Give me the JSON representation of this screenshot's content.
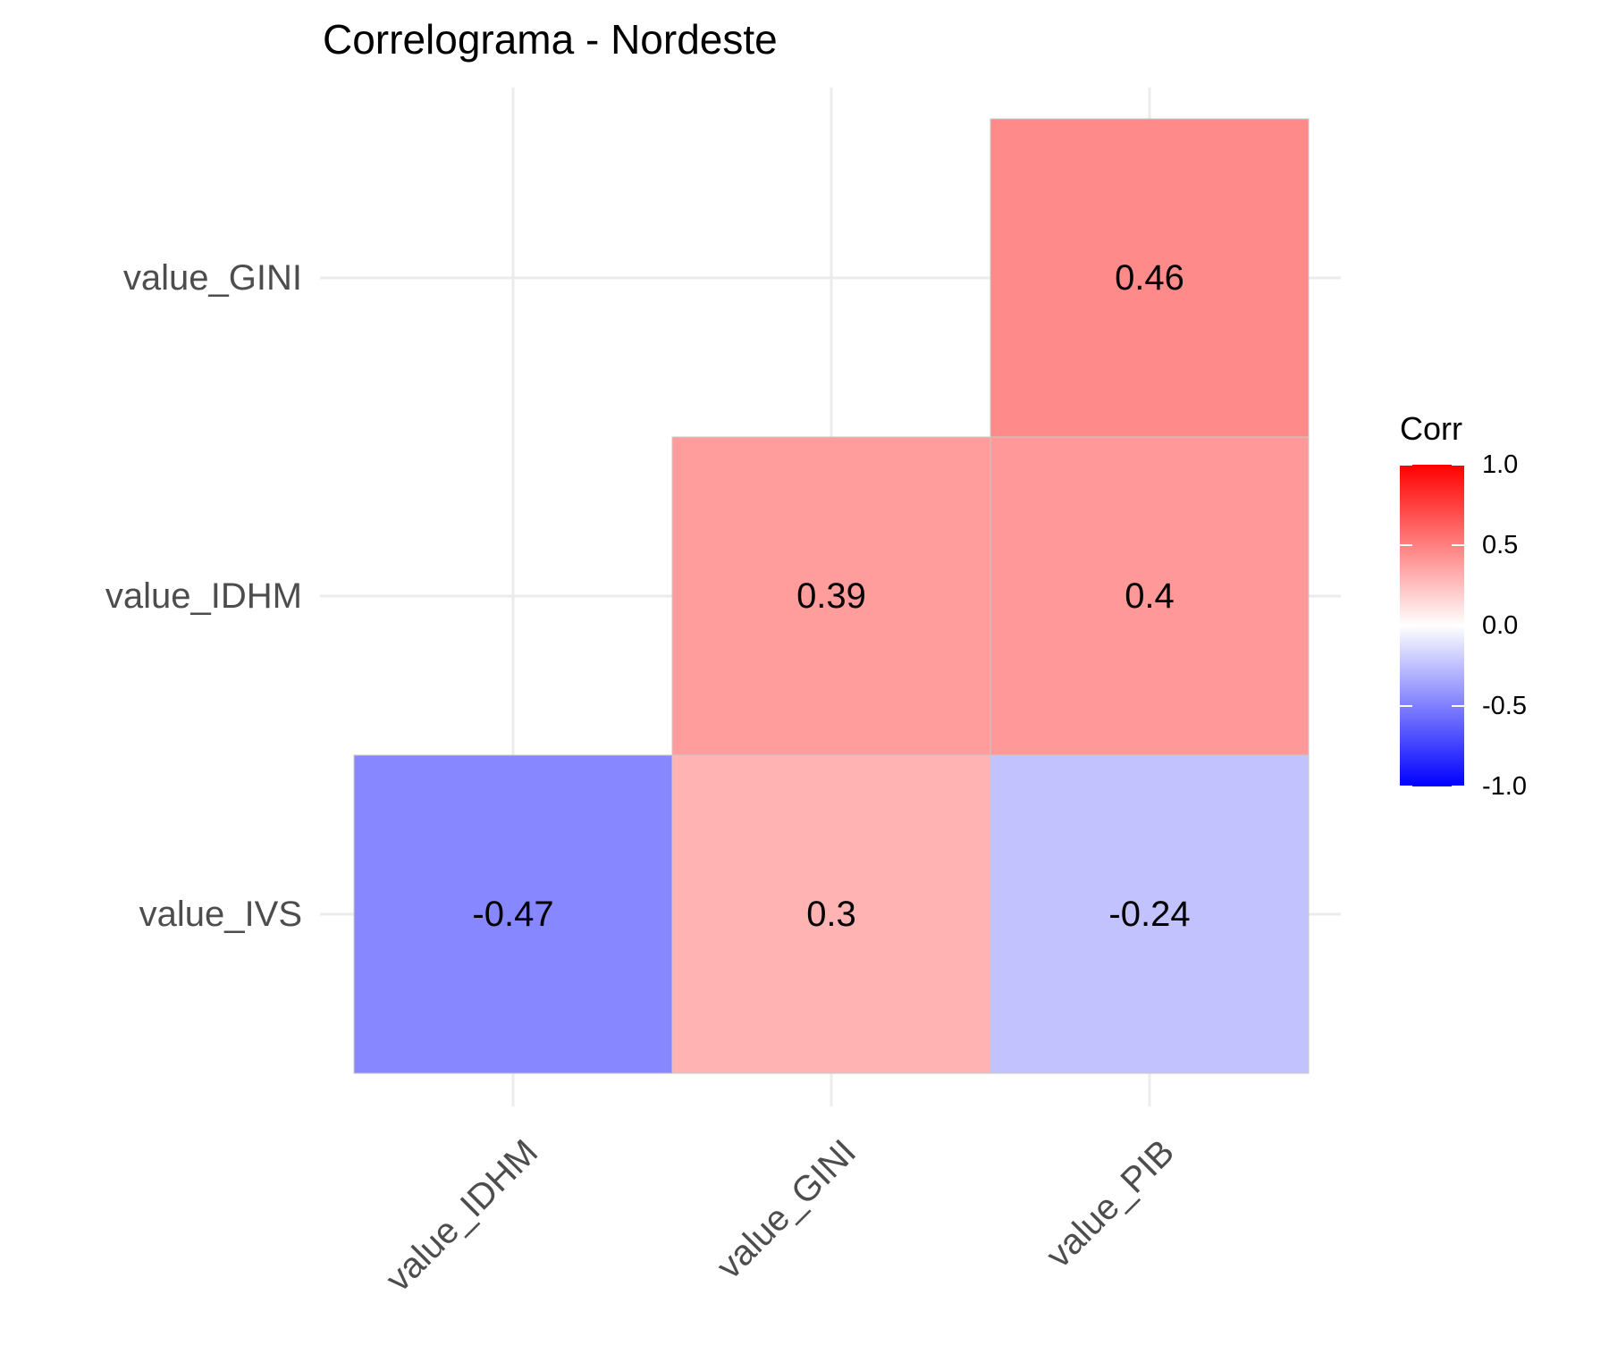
{
  "chart_data": {
    "type": "heatmap",
    "title": "Correlograma - Nordeste",
    "x_categories": [
      "value_IDHM",
      "value_GINI",
      "value_PIB"
    ],
    "y_categories": [
      "value_IVS",
      "value_IDHM",
      "value_GINI"
    ],
    "cells": [
      {
        "x": "value_IDHM",
        "y": "value_IVS",
        "value": -0.47,
        "label": "-0.47"
      },
      {
        "x": "value_GINI",
        "y": "value_IVS",
        "value": 0.3,
        "label": "0.3"
      },
      {
        "x": "value_PIB",
        "y": "value_IVS",
        "value": -0.24,
        "label": "-0.24"
      },
      {
        "x": "value_GINI",
        "y": "value_IDHM",
        "value": 0.39,
        "label": "0.39"
      },
      {
        "x": "value_PIB",
        "y": "value_IDHM",
        "value": 0.4,
        "label": "0.4"
      },
      {
        "x": "value_PIB",
        "y": "value_GINI",
        "value": 0.46,
        "label": "0.46"
      }
    ],
    "legend": {
      "title": "Corr",
      "position": "right",
      "range": [
        -1,
        1
      ],
      "ticks": [
        1,
        0.5,
        0,
        -0.5,
        -1
      ],
      "tick_labels": [
        "1.0",
        "0.5",
        "0.0",
        "-0.5",
        "-1.0"
      ]
    },
    "colors": {
      "low": "#0000ff",
      "mid": "#ffffff",
      "high": "#ff0000"
    },
    "grid": true
  }
}
